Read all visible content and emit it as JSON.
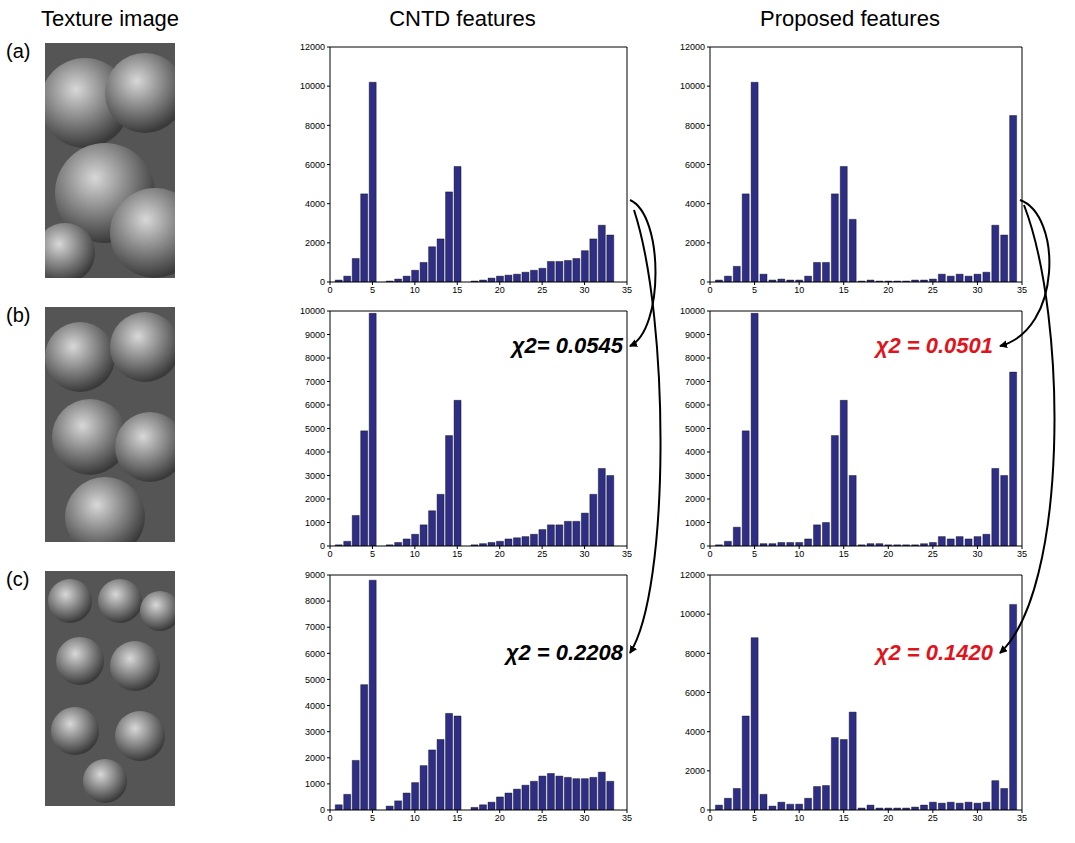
{
  "column_titles": [
    "Texture image",
    "CNTD features",
    "Proposed features"
  ],
  "row_labels": [
    "(a)",
    "(b)",
    "(c)"
  ],
  "chart_data": [
    {
      "type": "bar",
      "x": [
        1,
        2,
        3,
        4,
        5,
        6,
        7,
        8,
        9,
        10,
        11,
        12,
        13,
        14,
        15,
        16,
        17,
        18,
        19,
        20,
        21,
        22,
        23,
        24,
        25,
        26,
        27,
        28,
        29,
        30,
        31,
        32,
        33
      ],
      "values": [
        100,
        300,
        1200,
        4500,
        10200,
        0,
        50,
        150,
        300,
        600,
        1000,
        1800,
        2200,
        4600,
        5900,
        0,
        50,
        100,
        200,
        300,
        350,
        400,
        500,
        600,
        700,
        1050,
        1050,
        1100,
        1200,
        1600,
        2200,
        2900,
        2400
      ],
      "color": "#2e2e86",
      "xlim": [
        0,
        35
      ],
      "xticks": [
        0,
        5,
        10,
        15,
        20,
        25,
        30,
        35
      ],
      "ylim": [
        0,
        12000
      ],
      "yticks": [
        0,
        2000,
        4000,
        6000,
        8000,
        10000,
        12000
      ],
      "grid": false
    },
    {
      "type": "bar",
      "x": [
        1,
        2,
        3,
        4,
        5,
        6,
        7,
        8,
        9,
        10,
        11,
        12,
        13,
        14,
        15,
        16,
        17,
        18,
        19,
        20,
        21,
        22,
        23,
        24,
        25,
        26,
        27,
        28,
        29,
        30,
        31,
        32,
        33,
        34
      ],
      "values": [
        100,
        300,
        800,
        4500,
        10200,
        400,
        100,
        150,
        100,
        100,
        300,
        1000,
        1000,
        4500,
        5900,
        3200,
        50,
        100,
        50,
        50,
        50,
        50,
        100,
        100,
        150,
        400,
        300,
        400,
        300,
        400,
        500,
        2900,
        2400,
        8500
      ],
      "color": "#2e2e86",
      "xlim": [
        0,
        35
      ],
      "xticks": [
        0,
        5,
        10,
        15,
        20,
        25,
        30,
        35
      ],
      "ylim": [
        0,
        12000
      ],
      "yticks": [
        0,
        2000,
        4000,
        6000,
        8000,
        10000,
        12000
      ],
      "grid": false
    },
    {
      "type": "bar",
      "x": [
        1,
        2,
        3,
        4,
        5,
        6,
        7,
        8,
        9,
        10,
        11,
        12,
        13,
        14,
        15,
        16,
        17,
        18,
        19,
        20,
        21,
        22,
        23,
        24,
        25,
        26,
        27,
        28,
        29,
        30,
        31,
        32,
        33
      ],
      "values": [
        50,
        200,
        1300,
        4900,
        9900,
        0,
        50,
        150,
        300,
        500,
        900,
        1500,
        2200,
        4700,
        6200,
        0,
        50,
        100,
        150,
        200,
        300,
        350,
        400,
        500,
        700,
        900,
        900,
        1050,
        1050,
        1400,
        2200,
        3300,
        3000
      ],
      "color": "#2e2e86",
      "xlim": [
        0,
        35
      ],
      "xticks": [
        0,
        5,
        10,
        15,
        20,
        25,
        30,
        35
      ],
      "ylim": [
        0,
        10000
      ],
      "yticks": [
        0,
        1000,
        2000,
        3000,
        4000,
        5000,
        6000,
        7000,
        8000,
        9000,
        10000
      ],
      "grid": false,
      "annotations": [
        "χ2= 0.0545"
      ]
    },
    {
      "type": "bar",
      "x": [
        1,
        2,
        3,
        4,
        5,
        6,
        7,
        8,
        9,
        10,
        11,
        12,
        13,
        14,
        15,
        16,
        17,
        18,
        19,
        20,
        21,
        22,
        23,
        24,
        25,
        26,
        27,
        28,
        29,
        30,
        31,
        32,
        33,
        34
      ],
      "values": [
        50,
        200,
        800,
        4900,
        9900,
        100,
        100,
        150,
        150,
        150,
        300,
        900,
        1000,
        4700,
        6200,
        3000,
        50,
        100,
        100,
        50,
        50,
        50,
        50,
        100,
        150,
        400,
        300,
        400,
        300,
        400,
        500,
        3300,
        3000,
        7400
      ],
      "color": "#2e2e86",
      "xlim": [
        0,
        35
      ],
      "xticks": [
        0,
        5,
        10,
        15,
        20,
        25,
        30,
        35
      ],
      "ylim": [
        0,
        10000
      ],
      "yticks": [
        0,
        1000,
        2000,
        3000,
        4000,
        5000,
        6000,
        7000,
        8000,
        9000,
        10000
      ],
      "grid": false,
      "annotations": [
        "χ2 = 0.0501"
      ]
    },
    {
      "type": "bar",
      "x": [
        1,
        2,
        3,
        4,
        5,
        6,
        7,
        8,
        9,
        10,
        11,
        12,
        13,
        14,
        15,
        16,
        17,
        18,
        19,
        20,
        21,
        22,
        23,
        24,
        25,
        26,
        27,
        28,
        29,
        30,
        31,
        32,
        33
      ],
      "values": [
        200,
        600,
        1900,
        4800,
        8800,
        0,
        150,
        350,
        650,
        1050,
        1700,
        2300,
        2700,
        3700,
        3600,
        0,
        100,
        200,
        300,
        500,
        650,
        800,
        950,
        1100,
        1300,
        1400,
        1300,
        1250,
        1200,
        1200,
        1250,
        1450,
        1100
      ],
      "color": "#2e2e86",
      "xlim": [
        0,
        35
      ],
      "xticks": [
        0,
        5,
        10,
        15,
        20,
        25,
        30,
        35
      ],
      "ylim": [
        0,
        9000
      ],
      "yticks": [
        0,
        1000,
        2000,
        3000,
        4000,
        5000,
        6000,
        7000,
        8000,
        9000
      ],
      "grid": false,
      "annotations": [
        "χ2 = 0.2208"
      ]
    },
    {
      "type": "bar",
      "x": [
        1,
        2,
        3,
        4,
        5,
        6,
        7,
        8,
        9,
        10,
        11,
        12,
        13,
        14,
        15,
        16,
        17,
        18,
        19,
        20,
        21,
        22,
        23,
        24,
        25,
        26,
        27,
        28,
        29,
        30,
        31,
        32,
        33,
        34
      ],
      "values": [
        250,
        600,
        1100,
        4800,
        8800,
        800,
        200,
        400,
        300,
        300,
        600,
        1200,
        1250,
        3700,
        3600,
        5000,
        100,
        250,
        100,
        100,
        100,
        100,
        150,
        250,
        400,
        350,
        400,
        350,
        400,
        350,
        400,
        1500,
        1100,
        10500
      ],
      "color": "#2e2e86",
      "xlim": [
        0,
        35
      ],
      "xticks": [
        0,
        5,
        10,
        15,
        20,
        25,
        30,
        35
      ],
      "ylim": [
        0,
        12000
      ],
      "yticks": [
        0,
        2000,
        4000,
        6000,
        8000,
        10000,
        12000
      ],
      "grid": false,
      "annotations": [
        "χ2 = 0.1420"
      ]
    }
  ]
}
